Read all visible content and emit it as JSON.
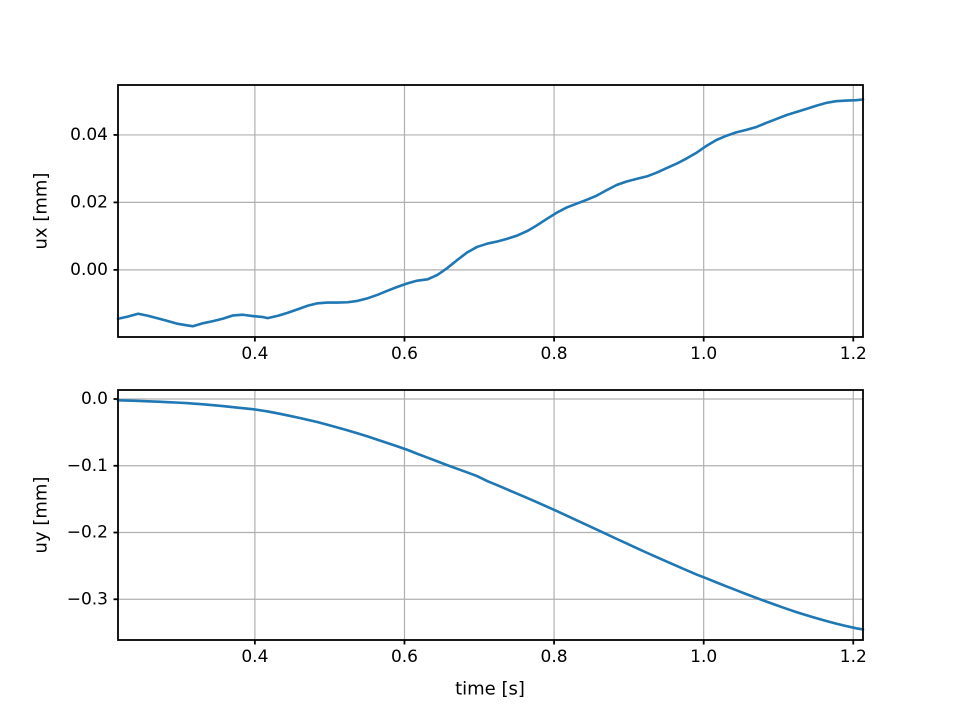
{
  "styles": {
    "line_color": "#1f77b4",
    "grid_color": "#b0b0b0",
    "spine_color": "#000000",
    "background": "#ffffff"
  },
  "chart_data": [
    {
      "type": "line",
      "id": "ux",
      "title": "",
      "xlabel": "",
      "ylabel": "ux [mm]",
      "legend": null,
      "grid": true,
      "xlim": [
        0.217,
        1.213
      ],
      "ylim": [
        -0.0199,
        0.0548
      ],
      "xticks": [
        {
          "v": 0.4,
          "label": "0.4"
        },
        {
          "v": 0.6,
          "label": "0.6"
        },
        {
          "v": 0.8,
          "label": "0.8"
        },
        {
          "v": 1.0,
          "label": "1.0"
        },
        {
          "v": 1.2,
          "label": "1.2"
        }
      ],
      "yticks": [
        {
          "v": 0.0,
          "label": "0.00"
        },
        {
          "v": 0.02,
          "label": "0.02"
        },
        {
          "v": 0.04,
          "label": "0.04"
        }
      ],
      "x": [
        0.217,
        0.231,
        0.244,
        0.257,
        0.271,
        0.284,
        0.297,
        0.311,
        0.317,
        0.331,
        0.344,
        0.357,
        0.371,
        0.384,
        0.397,
        0.411,
        0.417,
        0.431,
        0.444,
        0.457,
        0.471,
        0.484,
        0.497,
        0.511,
        0.524,
        0.537,
        0.551,
        0.564,
        0.577,
        0.591,
        0.604,
        0.617,
        0.631,
        0.644,
        0.657,
        0.671,
        0.684,
        0.697,
        0.711,
        0.724,
        0.737,
        0.751,
        0.764,
        0.777,
        0.791,
        0.804,
        0.817,
        0.831,
        0.844,
        0.857,
        0.871,
        0.884,
        0.897,
        0.911,
        0.924,
        0.937,
        0.951,
        0.964,
        0.977,
        0.991,
        1.004,
        1.017,
        1.031,
        1.044,
        1.057,
        1.071,
        1.084,
        1.097,
        1.111,
        1.124,
        1.137,
        1.151,
        1.164,
        1.177,
        1.191,
        1.204,
        1.213
      ],
      "series": [
        {
          "name": "ux",
          "values": [
            -0.0145,
            -0.0138,
            -0.013,
            -0.0136,
            -0.0144,
            -0.0152,
            -0.016,
            -0.0165,
            -0.0167,
            -0.0158,
            -0.0152,
            -0.0145,
            -0.0135,
            -0.0133,
            -0.0137,
            -0.014,
            -0.0143,
            -0.0136,
            -0.0127,
            -0.0117,
            -0.0106,
            -0.0099,
            -0.0097,
            -0.0097,
            -0.0096,
            -0.0092,
            -0.0084,
            -0.0074,
            -0.0062,
            -0.005,
            -0.004,
            -0.0032,
            -0.0028,
            -0.0015,
            0.0005,
            0.003,
            0.0052,
            0.0068,
            0.0078,
            0.0084,
            0.0092,
            0.0102,
            0.0115,
            0.0132,
            0.0152,
            0.017,
            0.0185,
            0.0197,
            0.0208,
            0.022,
            0.0237,
            0.0252,
            0.0262,
            0.027,
            0.0277,
            0.0288,
            0.0302,
            0.0315,
            0.033,
            0.0348,
            0.0368,
            0.0385,
            0.0398,
            0.0408,
            0.0415,
            0.0424,
            0.0436,
            0.0447,
            0.0459,
            0.0468,
            0.0477,
            0.0487,
            0.0495,
            0.05,
            0.0502,
            0.0503,
            0.0505
          ]
        }
      ]
    },
    {
      "type": "line",
      "id": "uy",
      "title": "",
      "xlabel": "time [s]",
      "ylabel": "uy [mm]",
      "legend": null,
      "grid": true,
      "xlim": [
        0.217,
        1.213
      ],
      "ylim": [
        -0.361,
        0.0135
      ],
      "xticks": [
        {
          "v": 0.4,
          "label": "0.4"
        },
        {
          "v": 0.6,
          "label": "0.6"
        },
        {
          "v": 0.8,
          "label": "0.8"
        },
        {
          "v": 1.0,
          "label": "1.0"
        },
        {
          "v": 1.2,
          "label": "1.2"
        }
      ],
      "yticks": [
        {
          "v": 0.0,
          "label": "0.0"
        },
        {
          "v": -0.1,
          "label": "−0.1"
        },
        {
          "v": -0.2,
          "label": "−0.2"
        },
        {
          "v": -0.3,
          "label": "−0.3"
        }
      ],
      "x": [
        0.217,
        0.231,
        0.244,
        0.257,
        0.271,
        0.284,
        0.297,
        0.311,
        0.317,
        0.331,
        0.344,
        0.357,
        0.371,
        0.384,
        0.397,
        0.411,
        0.417,
        0.431,
        0.444,
        0.457,
        0.471,
        0.484,
        0.497,
        0.511,
        0.524,
        0.537,
        0.551,
        0.564,
        0.577,
        0.591,
        0.604,
        0.617,
        0.631,
        0.644,
        0.657,
        0.671,
        0.684,
        0.697,
        0.711,
        0.724,
        0.737,
        0.751,
        0.764,
        0.777,
        0.791,
        0.804,
        0.817,
        0.831,
        0.844,
        0.857,
        0.871,
        0.884,
        0.897,
        0.911,
        0.924,
        0.937,
        0.951,
        0.964,
        0.977,
        0.991,
        1.004,
        1.017,
        1.031,
        1.044,
        1.057,
        1.071,
        1.084,
        1.097,
        1.111,
        1.124,
        1.137,
        1.151,
        1.164,
        1.177,
        1.191,
        1.204,
        1.213
      ],
      "series": [
        {
          "name": "uy",
          "values": [
            -0.002,
            -0.0024,
            -0.0029,
            -0.0034,
            -0.004,
            -0.0047,
            -0.0054,
            -0.0063,
            -0.0068,
            -0.008,
            -0.0092,
            -0.0106,
            -0.0122,
            -0.0137,
            -0.0152,
            -0.0176,
            -0.0186,
            -0.0216,
            -0.0246,
            -0.0277,
            -0.0313,
            -0.0346,
            -0.0386,
            -0.0429,
            -0.047,
            -0.0513,
            -0.0562,
            -0.061,
            -0.0659,
            -0.0712,
            -0.0762,
            -0.082,
            -0.0879,
            -0.0934,
            -0.099,
            -0.1047,
            -0.11,
            -0.1154,
            -0.1231,
            -0.1291,
            -0.1353,
            -0.142,
            -0.1482,
            -0.1546,
            -0.1615,
            -0.1681,
            -0.1748,
            -0.1821,
            -0.1889,
            -0.1956,
            -0.2029,
            -0.2097,
            -0.2164,
            -0.2237,
            -0.2303,
            -0.2368,
            -0.2437,
            -0.2501,
            -0.2564,
            -0.2631,
            -0.2688,
            -0.2747,
            -0.281,
            -0.2866,
            -0.2923,
            -0.2982,
            -0.3035,
            -0.3088,
            -0.3143,
            -0.3192,
            -0.3238,
            -0.3284,
            -0.3325,
            -0.3364,
            -0.3402,
            -0.3435,
            -0.3452
          ]
        }
      ]
    }
  ]
}
